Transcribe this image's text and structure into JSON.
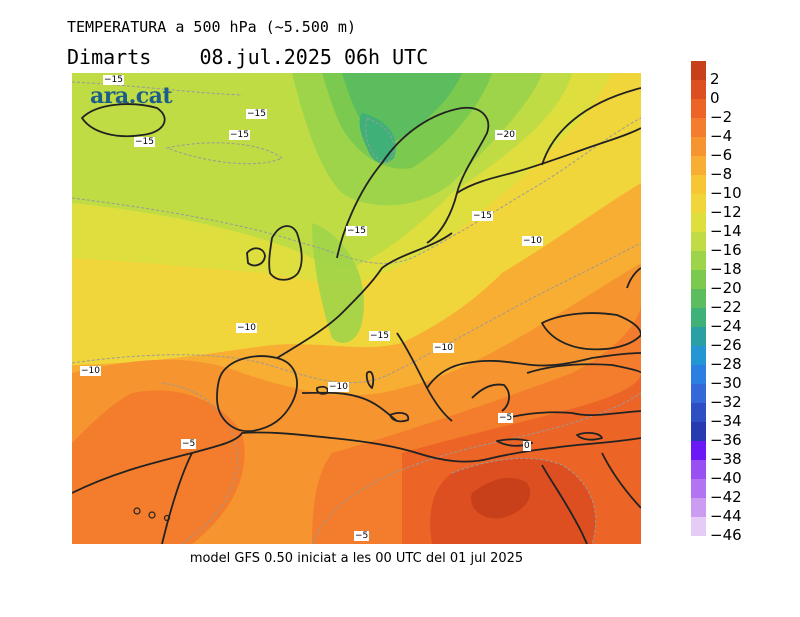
{
  "title": "TEMPERATURA a 500 hPa (~5.500 m)",
  "subtitle": "Dimarts    08.jul.2025 06h UTC",
  "logo": "ara.cat",
  "caption": "model GFS 0.50 iniciat a les 00 UTC del 01 jul 2025",
  "legend": {
    "levels": [
      "2",
      "0",
      "−2",
      "−4",
      "−6",
      "−8",
      "−10",
      "−12",
      "−14",
      "−16",
      "−18",
      "−20",
      "−22",
      "−24",
      "−26",
      "−28",
      "−30",
      "−32",
      "−34",
      "−36",
      "−38",
      "−40",
      "−42",
      "−44",
      "−46"
    ],
    "colors": [
      "#c8401a",
      "#dd4f20",
      "#ec6426",
      "#f37d2c",
      "#f6952f",
      "#f8ad33",
      "#f7c637",
      "#f1d63b",
      "#dede3e",
      "#bfdc45",
      "#9ed44a",
      "#7cc94f",
      "#5bbd5e",
      "#3fb178",
      "#2a9fa4",
      "#2596d4",
      "#2b7fe0",
      "#3468d8",
      "#2e4fc4",
      "#283ab0",
      "#6a18f5",
      "#9a4ff2",
      "#b274f0",
      "#cc9cf2",
      "#e4ccf7"
    ]
  },
  "contour_labels": [
    {
      "text": "−15"
    },
    {
      "text": "−15"
    },
    {
      "text": "−15"
    },
    {
      "text": "−15"
    },
    {
      "text": "−20"
    },
    {
      "text": "−15"
    },
    {
      "text": "−15"
    },
    {
      "text": "−10"
    },
    {
      "text": "−10"
    },
    {
      "text": "−15"
    },
    {
      "text": "−10"
    },
    {
      "text": "−10"
    },
    {
      "text": "−10"
    },
    {
      "text": "−5"
    },
    {
      "text": "−5"
    },
    {
      "text": "0"
    },
    {
      "text": "−5"
    }
  ]
}
